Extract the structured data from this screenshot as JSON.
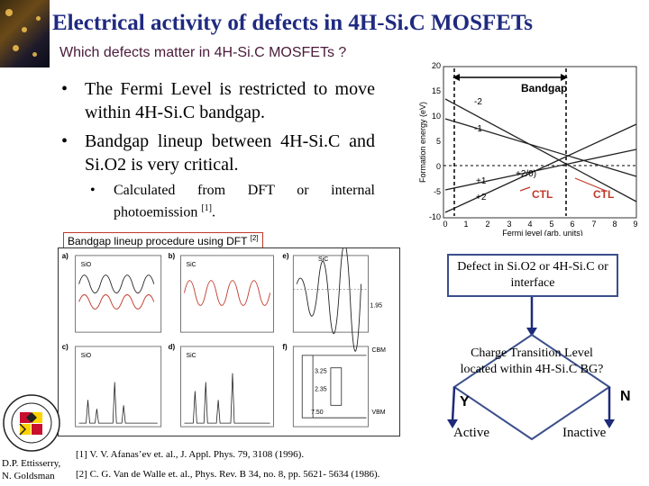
{
  "title": "Electrical activity of defects in 4H-Si.C MOSFETs",
  "subtitle": "Which defects matter in 4H-Si.C MOSFETs ?",
  "bullets": [
    "The Fermi Level is restricted to move within 4H-Si.C bandgap.",
    "Bandgap lineup between 4H-Si.C and Si.O2 is very critical."
  ],
  "sub_bullet": {
    "text": "Calculated from DFT or internal photoemission",
    "ref": "[1]",
    "end": "."
  },
  "graph": {
    "y_label": "Formation energy (eV)",
    "x_label": "Fermi level (arb. units)",
    "bandgap_label": "Bandgap",
    "y_ticks": [
      "20",
      "15",
      "10",
      "5",
      "0",
      "-5",
      "-10"
    ],
    "x_ticks": [
      "0",
      "1",
      "2",
      "3",
      "4",
      "5",
      "6",
      "7",
      "8",
      "9"
    ],
    "charge_labels": [
      "-2",
      "-1",
      "+1",
      "+2"
    ],
    "transition_label": "+2/0)",
    "ctl_left": "CTL",
    "ctl_right": "CTL"
  },
  "lineup": {
    "label": "Bandgap lineup procedure using DFT",
    "ref": "[2]"
  },
  "panel": {
    "letters": [
      "a)",
      "b)",
      "c)",
      "d)",
      "e)",
      "f)"
    ],
    "texts": [
      "SiO",
      "SiC",
      "SiO",
      "SiC",
      "SiC",
      "CBM",
      "VBM",
      "3.25",
      "2.35",
      "7.50",
      "1.95"
    ]
  },
  "flowchart": {
    "defect": "Defect in Si.O2 or 4H-Si.C or interface",
    "decision": "Charge Transition Level located within 4H-Si.C BG?",
    "yes": "Y",
    "no": "N",
    "active": "Active",
    "inactive": "Inactive"
  },
  "authors": [
    "D.P. Ettisserry,",
    "N. Goldsman"
  ],
  "references": [
    "[1] V. V. Afanas’ev et. al., J. Appl. Phys. 79, 3108 (1996).",
    "[2] C. G. Van de Walle et. al., Phys. Rev. B 34, no. 8, pp. 5621- 5634 (1986)."
  ],
  "colors": {
    "title": "#1f2a80",
    "ctl": "#c0392b",
    "flow_box": "#3b4f8c",
    "arrow": "#1e2a7a"
  }
}
